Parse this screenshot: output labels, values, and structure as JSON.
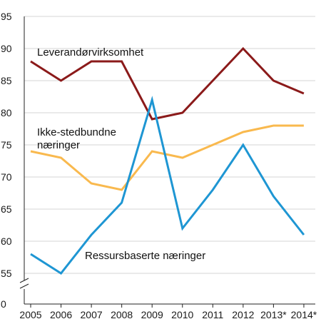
{
  "chart_data": {
    "type": "line",
    "categories": [
      "2005",
      "2006",
      "2007",
      "2008",
      "2009",
      "2010",
      "2011",
      "2012",
      "2013*",
      "2014*"
    ],
    "y_ticks": [
      "0",
      "55",
      "60",
      "65",
      "70",
      "75",
      "80",
      "85",
      "90",
      "95"
    ],
    "ylim": [
      55,
      95
    ],
    "axis_break": true,
    "grid": true,
    "series": [
      {
        "name": "Leverandørvirksomhet",
        "label_lines": [
          "Leverandørvirksomhet"
        ],
        "color": "#8b1a1a",
        "values": [
          88,
          85,
          88,
          88,
          79,
          80,
          85,
          90,
          85,
          83
        ]
      },
      {
        "name": "Ikke-stedbundne næringer",
        "label_lines": [
          "Ikke-stedbundne",
          "næringer"
        ],
        "color": "#f9b94e",
        "values": [
          74,
          73,
          69,
          68,
          74,
          73,
          75,
          77,
          78,
          78
        ]
      },
      {
        "name": "Ressursbaserte næringer",
        "label_lines": [
          "Ressursbaserte næringer"
        ],
        "color": "#1e96d3",
        "values": [
          58,
          55,
          61,
          66,
          82,
          62,
          68,
          75,
          67,
          61
        ]
      }
    ]
  }
}
